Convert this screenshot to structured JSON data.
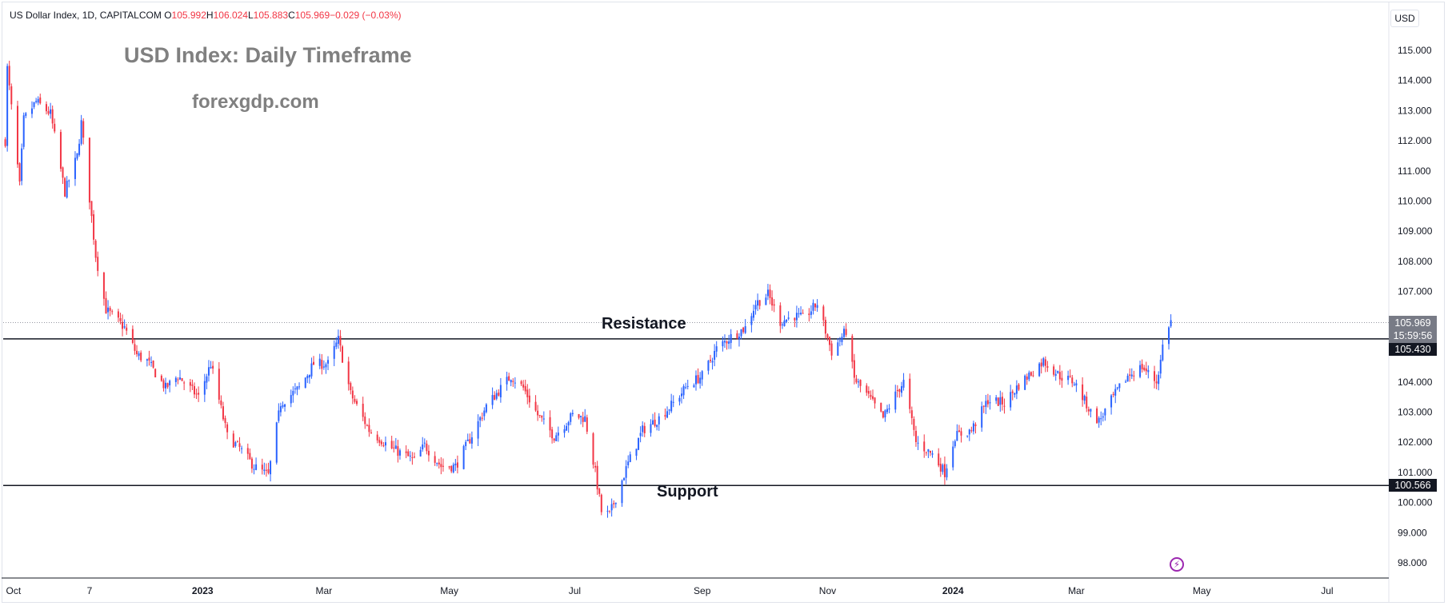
{
  "header": {
    "symbol_line": "US Dollar Index, 1D, CAPITALCOM",
    "open_label": "O",
    "open": "105.992",
    "high_label": "H",
    "high": "106.024",
    "low_label": "L",
    "low": "105.883",
    "close_label": "C",
    "close": "105.969",
    "change": "−0.029 (−0.03%)"
  },
  "annotations": {
    "title": "USD Index: Daily Timeframe",
    "site": "forexgdp.com",
    "resistance_label": "Resistance",
    "support_label": "Support"
  },
  "price_scale": {
    "currency": "USD",
    "last_price": "105.969",
    "countdown": "15:59:56",
    "resistance_price": "105.430",
    "support_price": "100.566"
  },
  "colors": {
    "up": "#2962ff",
    "down": "#f23645",
    "grid_border": "#e0e3eb",
    "level_line": "#131722",
    "last_price_tag": "#787b86",
    "level_tag": "#131722"
  },
  "chart_data": {
    "type": "candlestick",
    "symbol": "US Dollar Index",
    "timeframe": "1D",
    "ylim": [
      97.5,
      115.7
    ],
    "y_ticks": [
      98,
      99,
      100,
      101,
      102,
      103,
      104,
      105,
      106,
      107,
      108,
      109,
      110,
      111,
      112,
      113,
      114,
      115
    ],
    "y_tick_labels": [
      "98.000",
      "99.000",
      "100.000",
      "101.000",
      "102.000",
      "103.000",
      "104.000",
      "105.000",
      "106.000",
      "107.000",
      "108.000",
      "109.000",
      "110.000",
      "111.000",
      "112.000",
      "113.000",
      "114.000",
      "115.000"
    ],
    "x_tick_labels": [
      "Oct",
      "7",
      "2023",
      "Mar",
      "May",
      "Jul",
      "Sep",
      "Nov",
      "2024",
      "Mar",
      "May",
      "Jul"
    ],
    "x_tick_bold": [
      false,
      false,
      true,
      false,
      false,
      false,
      false,
      false,
      true,
      false,
      false,
      false
    ],
    "x_range": [
      "2022-09-26",
      "2024-07-31"
    ],
    "x_tick_dates": [
      "2022-10-01",
      "2022-11-07",
      "2023-01-01",
      "2023-03-01",
      "2023-05-01",
      "2023-07-01",
      "2023-09-01",
      "2023-11-01",
      "2024-01-01",
      "2024-03-01",
      "2024-05-01",
      "2024-07-01"
    ],
    "horizontal_levels": [
      {
        "label": "Resistance",
        "value": 105.43
      },
      {
        "label": "Support",
        "value": 100.566
      }
    ],
    "last_price": 105.969,
    "price_path": [
      [
        "2022-09-27",
        112.0
      ],
      [
        "2022-09-28",
        114.4
      ],
      [
        "2022-10-04",
        110.5
      ],
      [
        "2022-10-06",
        112.7
      ],
      [
        "2022-10-12",
        113.3
      ],
      [
        "2022-10-19",
        112.9
      ],
      [
        "2022-10-26",
        110.3
      ],
      [
        "2022-11-01",
        111.5
      ],
      [
        "2022-11-03",
        112.6
      ],
      [
        "2022-11-10",
        108.2
      ],
      [
        "2022-11-15",
        106.4
      ],
      [
        "2022-11-24",
        105.8
      ],
      [
        "2022-11-30",
        104.9
      ],
      [
        "2022-12-05",
        104.7
      ],
      [
        "2022-12-14",
        103.8
      ],
      [
        "2022-12-20",
        104.2
      ],
      [
        "2022-12-30",
        103.5
      ],
      [
        "2023-01-05",
        104.6
      ],
      [
        "2023-01-13",
        102.2
      ],
      [
        "2023-01-19",
        101.8
      ],
      [
        "2023-01-26",
        101.2
      ],
      [
        "2023-02-02",
        100.9
      ],
      [
        "2023-02-08",
        103.3
      ],
      [
        "2023-02-17",
        103.8
      ],
      [
        "2023-02-24",
        104.6
      ],
      [
        "2023-03-03",
        104.6
      ],
      [
        "2023-03-08",
        105.4
      ],
      [
        "2023-03-14",
        103.6
      ],
      [
        "2023-03-23",
        102.4
      ],
      [
        "2023-04-03",
        101.8
      ],
      [
        "2023-04-14",
        101.4
      ],
      [
        "2023-04-19",
        101.9
      ],
      [
        "2023-04-27",
        101.2
      ],
      [
        "2023-05-04",
        101.2
      ],
      [
        "2023-05-11",
        102.1
      ],
      [
        "2023-05-19",
        103.2
      ],
      [
        "2023-05-31",
        104.2
      ],
      [
        "2023-06-06",
        103.8
      ],
      [
        "2023-06-13",
        102.9
      ],
      [
        "2023-06-21",
        102.2
      ],
      [
        "2023-06-30",
        102.9
      ],
      [
        "2023-07-06",
        102.8
      ],
      [
        "2023-07-11",
        101.0
      ],
      [
        "2023-07-14",
        99.7
      ],
      [
        "2023-07-18",
        99.6
      ],
      [
        "2023-07-27",
        101.3
      ],
      [
        "2023-08-03",
        102.4
      ],
      [
        "2023-08-11",
        102.8
      ],
      [
        "2023-08-18",
        103.3
      ],
      [
        "2023-08-25",
        103.9
      ],
      [
        "2023-09-01",
        104.2
      ],
      [
        "2023-09-08",
        105.1
      ],
      [
        "2023-09-15",
        105.5
      ],
      [
        "2023-09-22",
        105.8
      ],
      [
        "2023-09-27",
        106.6
      ],
      [
        "2023-10-03",
        106.9
      ],
      [
        "2023-10-09",
        106.0
      ],
      [
        "2023-10-16",
        106.2
      ],
      [
        "2023-10-20",
        106.1
      ],
      [
        "2023-10-27",
        106.6
      ],
      [
        "2023-11-03",
        105.0
      ],
      [
        "2023-11-10",
        105.7
      ],
      [
        "2023-11-14",
        104.1
      ],
      [
        "2023-11-21",
        103.5
      ],
      [
        "2023-11-28",
        102.8
      ],
      [
        "2023-12-05",
        103.7
      ],
      [
        "2023-12-08",
        104.0
      ],
      [
        "2023-12-14",
        102.0
      ],
      [
        "2023-12-22",
        101.6
      ],
      [
        "2023-12-28",
        101.0
      ],
      [
        "2024-01-02",
        102.2
      ],
      [
        "2024-01-10",
        102.4
      ],
      [
        "2024-01-18",
        103.4
      ],
      [
        "2024-01-26",
        103.3
      ],
      [
        "2024-02-02",
        103.9
      ],
      [
        "2024-02-14",
        104.7
      ],
      [
        "2024-02-22",
        104.2
      ],
      [
        "2024-02-29",
        104.0
      ],
      [
        "2024-03-08",
        103.0
      ],
      [
        "2024-03-12",
        102.7
      ],
      [
        "2024-03-19",
        103.5
      ],
      [
        "2024-03-26",
        104.2
      ],
      [
        "2024-04-02",
        104.5
      ],
      [
        "2024-04-09",
        104.0
      ],
      [
        "2024-04-11",
        104.7
      ],
      [
        "2024-04-12",
        105.2
      ],
      [
        "2024-04-15",
        105.9
      ],
      [
        "2024-04-16",
        106.0
      ]
    ]
  }
}
